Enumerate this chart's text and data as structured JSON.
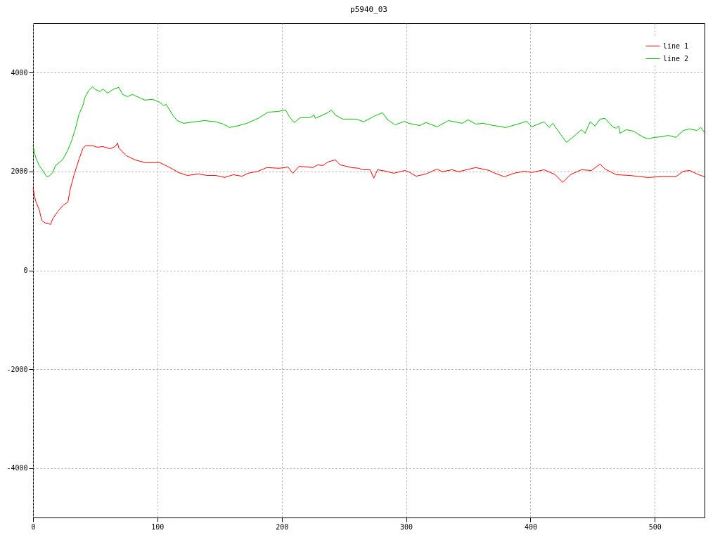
{
  "chart_data": {
    "type": "line",
    "title": "p5940_03",
    "xlim": [
      0,
      540
    ],
    "xticks": [
      0,
      100,
      200,
      300,
      400,
      500
    ],
    "ylim": [
      -5000,
      5000
    ],
    "yticks": [
      -4000,
      -2000,
      0,
      2000,
      4000
    ],
    "grid": true,
    "legend": "top right",
    "series": [
      {
        "name": "line 1",
        "color": "#ff0000",
        "x": [
          0,
          2,
          5,
          7,
          10,
          12,
          14,
          16,
          20,
          24,
          28,
          30,
          33,
          37,
          40,
          42,
          48,
          52,
          56,
          62,
          66,
          68,
          69,
          75,
          82,
          90,
          99,
          102,
          110,
          117,
          124,
          133,
          140,
          147,
          154,
          161,
          168,
          173,
          181,
          188,
          198,
          205,
          209,
          214,
          225,
          229,
          233,
          237,
          243,
          247,
          256,
          262,
          265,
          271,
          274,
          277,
          284,
          290,
          299,
          302,
          308,
          316,
          325,
          329,
          337,
          342,
          356,
          367,
          370,
          379,
          387,
          395,
          401,
          411,
          420,
          426,
          432,
          441,
          449,
          456,
          460,
          469,
          480,
          494,
          506,
          517,
          523,
          528,
          534,
          537,
          540
        ],
        "values": [
          1665,
          1410,
          1225,
          1010,
          955,
          955,
          925,
          1050,
          1195,
          1310,
          1380,
          1650,
          1935,
          2250,
          2460,
          2520,
          2520,
          2490,
          2505,
          2460,
          2505,
          2575,
          2475,
          2320,
          2235,
          2180,
          2180,
          2180,
          2080,
          1980,
          1920,
          1950,
          1920,
          1920,
          1880,
          1935,
          1905,
          1965,
          2005,
          2080,
          2065,
          2090,
          1965,
          2105,
          2080,
          2135,
          2120,
          2190,
          2235,
          2135,
          2080,
          2065,
          2035,
          2035,
          1865,
          2035,
          2005,
          1965,
          2020,
          1995,
          1905,
          1950,
          2050,
          1995,
          2035,
          1995,
          2080,
          2020,
          1980,
          1895,
          1965,
          2005,
          1980,
          2035,
          1935,
          1780,
          1935,
          2035,
          2020,
          2150,
          2050,
          1935,
          1920,
          1880,
          1895,
          1895,
          2005,
          2020,
          1950,
          1920,
          1895
        ]
      },
      {
        "name": "line 2",
        "color": "#00c000",
        "x": [
          0,
          2,
          5,
          7,
          11,
          13,
          16,
          18,
          23,
          25,
          28,
          31,
          34,
          37,
          40,
          42,
          45,
          48,
          50,
          54,
          56,
          60,
          65,
          69,
          72,
          76,
          80,
          85,
          90,
          96,
          102,
          105,
          107,
          113,
          116,
          121,
          130,
          138,
          147,
          153,
          158,
          164,
          172,
          181,
          189,
          197,
          203,
          206,
          210,
          215,
          223,
          226,
          227,
          237,
          240,
          243,
          249,
          260,
          266,
          274,
          281,
          285,
          291,
          299,
          302,
          311,
          316,
          325,
          334,
          345,
          350,
          356,
          362,
          367,
          380,
          390,
          397,
          401,
          411,
          415,
          418,
          424,
          429,
          434,
          441,
          444,
          448,
          452,
          456,
          460,
          466,
          469,
          471,
          472,
          477,
          483,
          489,
          494,
          500,
          506,
          511,
          517,
          523,
          528,
          534,
          537,
          540
        ],
        "values": [
          2520,
          2290,
          2120,
          2050,
          1895,
          1910,
          1980,
          2120,
          2220,
          2290,
          2435,
          2620,
          2860,
          3160,
          3330,
          3515,
          3645,
          3715,
          3660,
          3615,
          3670,
          3585,
          3670,
          3700,
          3560,
          3515,
          3560,
          3500,
          3445,
          3460,
          3400,
          3330,
          3360,
          3115,
          3030,
          2975,
          3005,
          3030,
          3005,
          2960,
          2890,
          2920,
          2975,
          3075,
          3200,
          3215,
          3245,
          3115,
          2990,
          3090,
          3090,
          3145,
          3075,
          3190,
          3245,
          3145,
          3060,
          3060,
          3005,
          3115,
          3190,
          3050,
          2945,
          3015,
          2975,
          2930,
          2990,
          2905,
          3030,
          2975,
          3045,
          2960,
          2975,
          2945,
          2890,
          2960,
          3015,
          2905,
          3005,
          2890,
          2975,
          2760,
          2590,
          2690,
          2845,
          2775,
          3005,
          2920,
          3060,
          3075,
          2905,
          2875,
          2920,
          2775,
          2845,
          2815,
          2720,
          2660,
          2690,
          2705,
          2730,
          2690,
          2830,
          2860,
          2830,
          2890,
          2790
        ]
      }
    ]
  }
}
